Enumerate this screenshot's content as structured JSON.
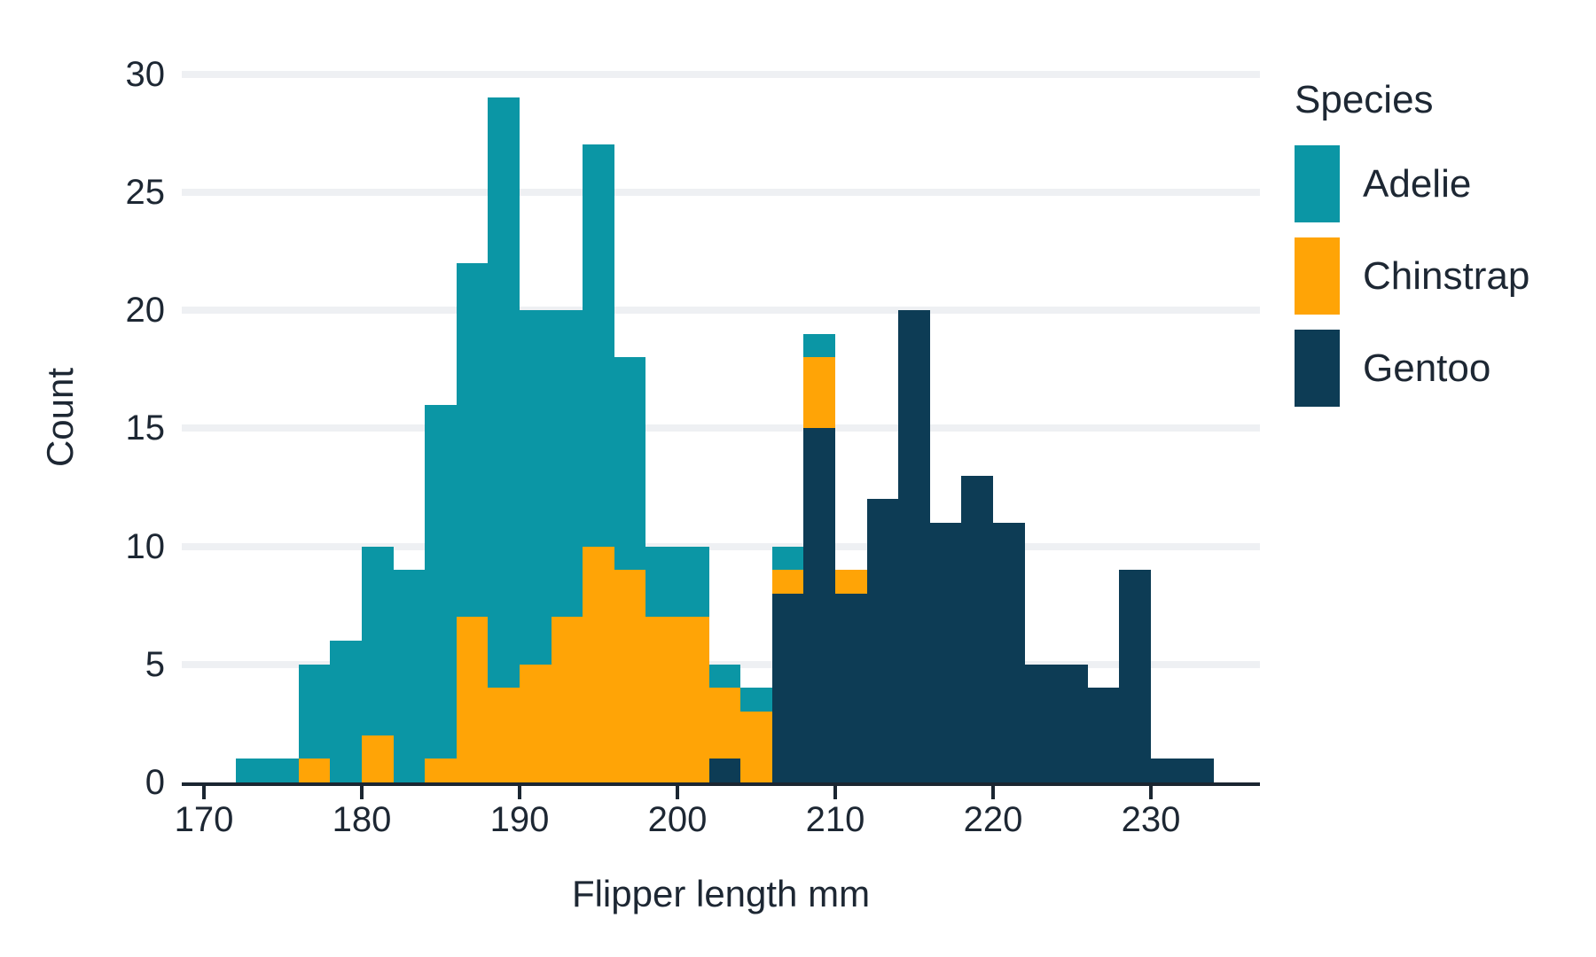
{
  "chart_data": {
    "type": "bar",
    "subtype": "stacked-histogram",
    "title": "",
    "xlabel": "Flipper length mm",
    "ylabel": "Count",
    "bin_width": 2,
    "bin_left_edges": [
      172,
      174,
      176,
      178,
      180,
      182,
      184,
      186,
      188,
      190,
      192,
      194,
      196,
      198,
      200,
      202,
      204,
      206,
      208,
      210,
      212,
      214,
      216,
      218,
      220,
      222,
      224,
      226,
      228,
      230,
      232
    ],
    "series": [
      {
        "name": "Adelie",
        "color": "#0b96a5",
        "values": [
          1,
          1,
          4,
          6,
          8,
          9,
          15,
          15,
          25,
          15,
          13,
          17,
          9,
          3,
          3,
          1,
          1,
          1,
          1,
          0,
          0,
          0,
          0,
          0,
          0,
          0,
          0,
          0,
          0,
          0,
          0
        ]
      },
      {
        "name": "Chinstrap",
        "color": "#ffa406",
        "values": [
          0,
          0,
          1,
          0,
          2,
          0,
          1,
          7,
          4,
          5,
          7,
          10,
          9,
          7,
          7,
          3,
          3,
          1,
          3,
          1,
          0,
          0,
          0,
          0,
          0,
          0,
          0,
          0,
          0,
          0,
          0
        ]
      },
      {
        "name": "Gentoo",
        "color": "#0d3c55",
        "values": [
          0,
          0,
          0,
          0,
          0,
          0,
          0,
          0,
          0,
          0,
          0,
          0,
          0,
          0,
          0,
          1,
          0,
          8,
          15,
          8,
          12,
          20,
          11,
          13,
          11,
          5,
          5,
          4,
          9,
          1,
          1
        ]
      }
    ],
    "stack_order_bottom_to_top": [
      "Gentoo",
      "Chinstrap",
      "Adelie"
    ],
    "xticks": [
      170,
      180,
      190,
      200,
      210,
      220,
      230
    ],
    "yticks": [
      0,
      5,
      10,
      15,
      20,
      25,
      30
    ],
    "xlim": [
      168.5,
      237
    ],
    "ylim": [
      0,
      31
    ],
    "grid": "horizontal-major-only",
    "legend_position": "right"
  },
  "legend": {
    "title": "Species",
    "entries": [
      {
        "label": "Adelie",
        "color": "#0b96a5"
      },
      {
        "label": "Chinstrap",
        "color": "#ffa406"
      },
      {
        "label": "Gentoo",
        "color": "#0d3c55"
      }
    ]
  },
  "axes": {
    "x_title": "Flipper length mm",
    "y_title": "Count"
  },
  "colors": {
    "grid": "#eef0f3",
    "axis": "#1b2631",
    "text": "#1d2733",
    "background": "#ffffff"
  }
}
